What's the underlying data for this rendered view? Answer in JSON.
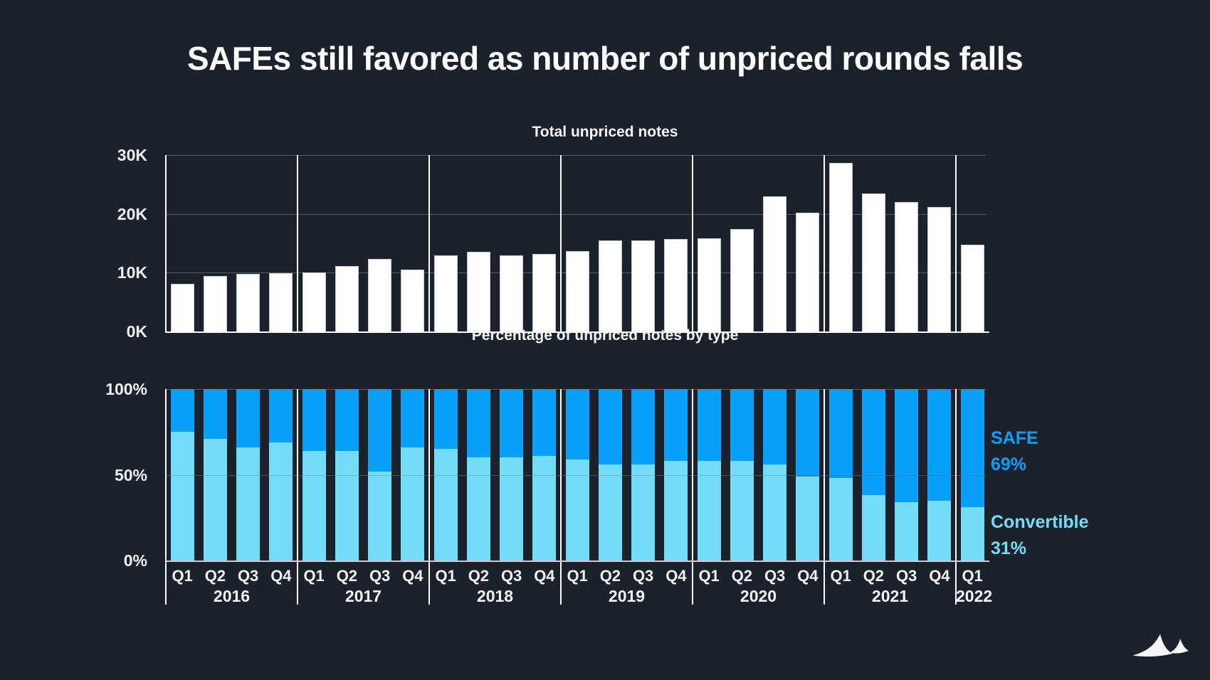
{
  "title": "SAFEs still favored as number of unpriced rounds falls",
  "colors": {
    "background": "#1b222b",
    "total_bar": "#ffffff",
    "safe_blue": "#08a0f9",
    "convertible_blue": "#75dcf8",
    "grid": "rgba(255,255,255,0.26)",
    "divider": "#ffffff",
    "top_baseline": "#ffffff",
    "bottom_baseline": "#c9ced5",
    "axis_text": "#eef1f4"
  },
  "x_axis": {
    "years": [
      {
        "year": "2016",
        "quarters": [
          "Q1",
          "Q2",
          "Q3",
          "Q4"
        ]
      },
      {
        "year": "2017",
        "quarters": [
          "Q1",
          "Q2",
          "Q3",
          "Q4"
        ]
      },
      {
        "year": "2018",
        "quarters": [
          "Q1",
          "Q2",
          "Q3",
          "Q4"
        ]
      },
      {
        "year": "2019",
        "quarters": [
          "Q1",
          "Q2",
          "Q3",
          "Q4"
        ]
      },
      {
        "year": "2020",
        "quarters": [
          "Q1",
          "Q2",
          "Q3",
          "Q4"
        ]
      },
      {
        "year": "2021",
        "quarters": [
          "Q1",
          "Q2",
          "Q3",
          "Q4"
        ]
      },
      {
        "year": "2022",
        "quarters": [
          "Q1"
        ]
      }
    ]
  },
  "chart_data": [
    {
      "type": "bar",
      "title": "Total unpriced notes",
      "unit": "thousands of notes",
      "categories": [
        "2016 Q1",
        "2016 Q2",
        "2016 Q3",
        "2016 Q4",
        "2017 Q1",
        "2017 Q2",
        "2017 Q3",
        "2017 Q4",
        "2018 Q1",
        "2018 Q2",
        "2018 Q3",
        "2018 Q4",
        "2019 Q1",
        "2019 Q2",
        "2019 Q3",
        "2019 Q4",
        "2020 Q1",
        "2020 Q2",
        "2020 Q3",
        "2020 Q4",
        "2021 Q1",
        "2021 Q2",
        "2021 Q3",
        "2021 Q4",
        "2022 Q1"
      ],
      "values": [
        8.1,
        9.4,
        9.8,
        9.9,
        10.0,
        11.1,
        12.3,
        10.5,
        13.0,
        13.5,
        12.9,
        13.2,
        13.7,
        15.5,
        15.5,
        15.7,
        15.8,
        17.4,
        23.0,
        20.2,
        28.7,
        23.5,
        22.0,
        21.2,
        14.7
      ],
      "ylim": [
        0,
        30
      ],
      "y_ticks": [
        {
          "label": "0K",
          "value": 0
        },
        {
          "label": "10K",
          "value": 10
        },
        {
          "label": "20K",
          "value": 20
        },
        {
          "label": "30K",
          "value": 30
        }
      ],
      "grid": true,
      "bar_color": "#ffffff"
    },
    {
      "type": "bar",
      "stacked": true,
      "title": "Percentage of unpriced notes by type",
      "unit": "percent",
      "categories": [
        "2016 Q1",
        "2016 Q2",
        "2016 Q3",
        "2016 Q4",
        "2017 Q1",
        "2017 Q2",
        "2017 Q3",
        "2017 Q4",
        "2018 Q1",
        "2018 Q2",
        "2018 Q3",
        "2018 Q4",
        "2019 Q1",
        "2019 Q2",
        "2019 Q3",
        "2019 Q4",
        "2020 Q1",
        "2020 Q2",
        "2020 Q3",
        "2020 Q4",
        "2021 Q1",
        "2021 Q2",
        "2021 Q3",
        "2021 Q4",
        "2022 Q1"
      ],
      "series": [
        {
          "name": "Convertible",
          "color": "#75dcf8",
          "values": [
            75,
            71,
            66,
            69,
            64,
            64,
            52,
            66,
            65,
            60,
            60,
            61,
            59,
            56,
            56,
            58,
            58,
            58,
            56,
            49,
            48,
            38,
            34,
            35,
            31
          ]
        },
        {
          "name": "SAFE",
          "color": "#08a0f9",
          "values": [
            25,
            29,
            34,
            31,
            36,
            36,
            48,
            34,
            35,
            40,
            40,
            39,
            41,
            44,
            44,
            42,
            42,
            42,
            44,
            51,
            52,
            62,
            66,
            65,
            69
          ]
        }
      ],
      "ylim": [
        0,
        100
      ],
      "y_ticks": [
        {
          "label": "0%",
          "value": 0
        },
        {
          "label": "50%",
          "value": 50
        },
        {
          "label": "100%",
          "value": 100
        }
      ],
      "grid": true,
      "legend": {
        "position": "right",
        "entries": [
          {
            "label": "SAFE",
            "value": "69%",
            "color": "#08a0f9"
          },
          {
            "label": "Convertible",
            "value": "31%",
            "color": "#75dcf8"
          }
        ]
      }
    }
  ],
  "footer": {
    "logo_icon": "twin-peaks-sails-logo"
  }
}
